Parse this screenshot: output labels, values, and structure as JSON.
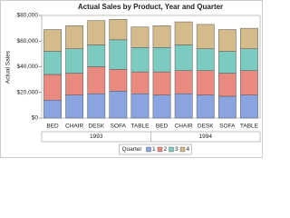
{
  "chart_data": {
    "type": "stacked_bar",
    "title": "Actual Sales by Product, Year and Quarter",
    "y_label": "Actual Sales",
    "categories": [
      "BED",
      "CHAIR",
      "DESK",
      "SOFA",
      "TABLE",
      "BED",
      "CHAIR",
      "DESK",
      "SOFA",
      "TABLE"
    ],
    "groups": [
      "1993",
      "1994"
    ],
    "legend_title": "Quarter",
    "series": [
      {
        "name": "1",
        "color": "#8aa4e0",
        "values": [
          14000,
          18000,
          19000,
          21000,
          19000,
          18000,
          19000,
          18000,
          17000,
          18000
        ]
      },
      {
        "name": "2",
        "color": "#e88a80",
        "values": [
          20000,
          17000,
          21000,
          17000,
          17000,
          18000,
          18000,
          19000,
          18000,
          19000
        ]
      },
      {
        "name": "3",
        "color": "#7ccbc0",
        "values": [
          18000,
          19000,
          17000,
          23000,
          19000,
          19000,
          20000,
          17000,
          17000,
          17000
        ]
      },
      {
        "name": "4",
        "color": "#d4bb8c",
        "values": [
          17000,
          18000,
          19000,
          16000,
          16000,
          17000,
          18000,
          19000,
          17000,
          16000
        ]
      }
    ],
    "ylim": [
      0,
      80000
    ],
    "yticks": [
      {
        "value": 0,
        "label": "$0"
      },
      {
        "value": 20000,
        "label": "$20,000"
      },
      {
        "value": 40000,
        "label": "$40,000"
      },
      {
        "value": 60000,
        "label": "$60,000"
      },
      {
        "value": 80000,
        "label": "$80,000"
      }
    ]
  }
}
